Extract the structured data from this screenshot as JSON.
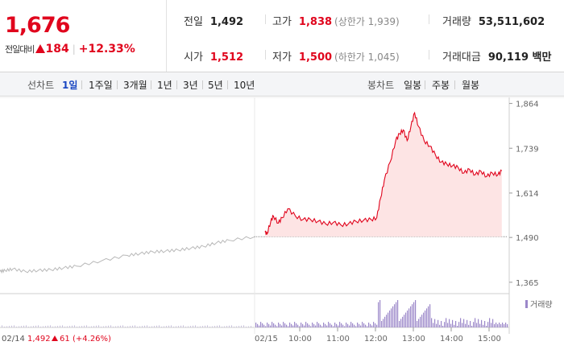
{
  "quote": {
    "price": "1,676",
    "change_label": "전일대비",
    "change_amount": "184",
    "change_pct": "+12.33%",
    "prev_close_label": "전일",
    "prev_close": "1,492",
    "high_label": "고가",
    "high": "1,838",
    "upper_limit": "(상한가 1,939)",
    "volume_label": "거래량",
    "volume": "53,511,602",
    "open_label": "시가",
    "open": "1,512",
    "low_label": "저가",
    "low": "1,500",
    "lower_limit": "(하한가 1,045)",
    "trade_value_label": "거래대금",
    "trade_value": "90,119 백만"
  },
  "toolbar": {
    "line_chart_label": "선차트",
    "periods": [
      "1일",
      "1주일",
      "3개월",
      "1년",
      "3년",
      "5년",
      "10년"
    ],
    "selected_period": "1일",
    "candle_chart_label": "봉차트",
    "candle_periods": [
      "일봉",
      "주봉",
      "월봉"
    ]
  },
  "colors": {
    "up": "#e0051d",
    "down": "#1a47c2",
    "prev_line": "#b8b8b8",
    "area_fill": "#fde4e4",
    "volume": "#9b87c9"
  },
  "chart_data": {
    "type": "line",
    "price_axis": {
      "ticks": [
        1864,
        1739,
        1614,
        1490,
        1365
      ],
      "tick_labels": [
        "1,864",
        "1,739",
        "1,614",
        "1,490",
        "1,365"
      ],
      "ylim": [
        1340,
        1890
      ]
    },
    "prev_day": {
      "date": "02/14",
      "close": "1,492",
      "change": "61",
      "change_pct": "(+4.26%)",
      "x": [
        0,
        2,
        5,
        10,
        15,
        20,
        25,
        30,
        40,
        50,
        55,
        60,
        65,
        70,
        75,
        80,
        85,
        90,
        100
      ],
      "y": [
        1395,
        1398,
        1402,
        1395,
        1398,
        1400,
        1405,
        1410,
        1425,
        1440,
        1445,
        1450,
        1452,
        1455,
        1460,
        1465,
        1475,
        1482,
        1492
      ]
    },
    "today": {
      "date": "02/15",
      "time_labels": [
        "10:00",
        "11:00",
        "12:00",
        "13:00",
        "14:00",
        "15:00"
      ],
      "time_values": [
        1,
        2,
        3,
        4,
        5,
        6
      ],
      "x": [
        0,
        0.05,
        0.15,
        0.22,
        0.35,
        0.45,
        0.6,
        0.8,
        1.0,
        1.2,
        1.4,
        1.6,
        1.8,
        2.0,
        2.2,
        2.4,
        2.6,
        2.8,
        2.95,
        3.05,
        3.15,
        3.3,
        3.45,
        3.55,
        3.65,
        3.75,
        3.85,
        3.95,
        4.05,
        4.2,
        4.35,
        4.5,
        4.65,
        4.8,
        4.95,
        5.1,
        5.25,
        5.4,
        5.55,
        5.7,
        5.85,
        6.0,
        6.15,
        6.25
      ],
      "y": [
        1505,
        1500,
        1535,
        1550,
        1530,
        1545,
        1570,
        1550,
        1540,
        1540,
        1535,
        1528,
        1532,
        1525,
        1528,
        1535,
        1538,
        1540,
        1545,
        1600,
        1650,
        1700,
        1760,
        1780,
        1790,
        1760,
        1800,
        1838,
        1800,
        1760,
        1745,
        1720,
        1700,
        1695,
        1690,
        1685,
        1670,
        1680,
        1665,
        1675,
        1660,
        1670,
        1665,
        1676
      ]
    },
    "volume_label": "거래량",
    "volume_note": "bars relative to day's max volume"
  }
}
